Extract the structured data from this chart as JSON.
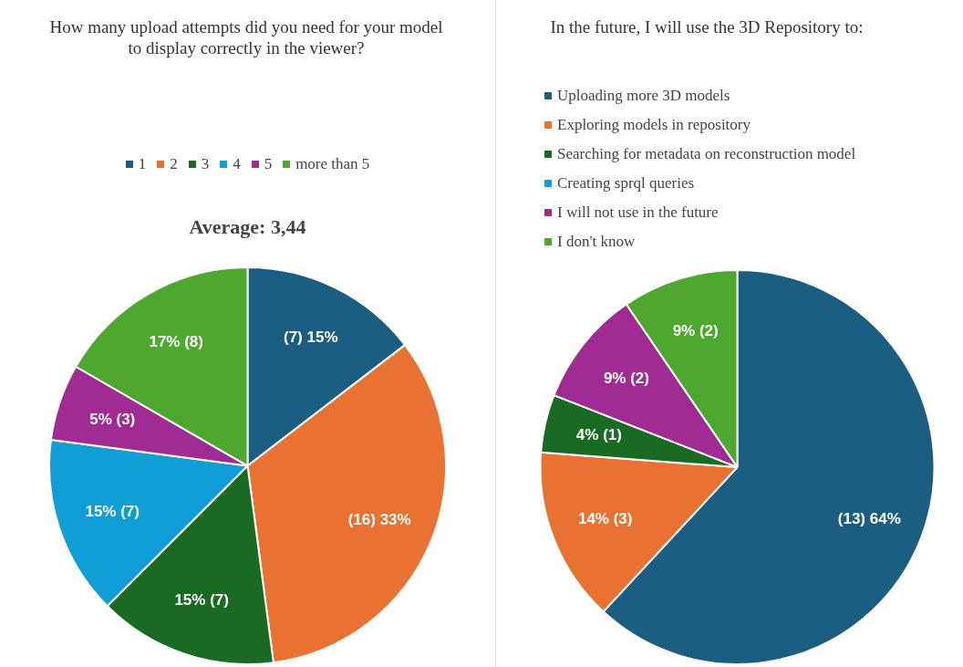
{
  "chart_data": [
    {
      "type": "pie",
      "title": "How many upload attempts did you need for your model to display correctly in the viewer?",
      "subtitle": "Average: 3,44",
      "categories": [
        "1",
        "2",
        "3",
        "4",
        "5",
        "more than 5"
      ],
      "values": [
        7,
        16,
        7,
        7,
        3,
        8
      ],
      "colors": [
        "#1b5e82",
        "#e97132",
        "#196b24",
        "#0f9ed5",
        "#a02b93",
        "#4ea72e"
      ],
      "value_labels": [
        "(7) 15%",
        "(16) 33%",
        "15% (7)",
        "15% (7)",
        "5% (3)",
        "17% (8)"
      ],
      "legend": "top"
    },
    {
      "type": "pie",
      "title": "In the future, I will use the 3D Repository to:",
      "categories": [
        "Uploading more 3D models",
        "Exploring models in repository",
        "Searching for metadata on reconstruction model",
        "Creating sprql queries",
        "I will not use in the future",
        "I don't know"
      ],
      "values": [
        13,
        3,
        1,
        0,
        2,
        2
      ],
      "colors": [
        "#1b5e82",
        "#e97132",
        "#196b24",
        "#0f9ed5",
        "#a02b93",
        "#4ea72e"
      ],
      "value_labels": [
        "(13) 64%",
        "14% (3)",
        "4% (1)",
        null,
        "9% (2)",
        "9% (2)"
      ],
      "legend": "top left"
    }
  ]
}
